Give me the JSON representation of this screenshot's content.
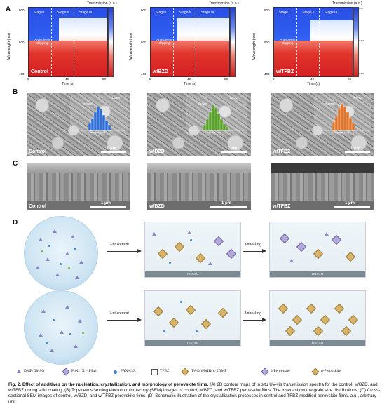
{
  "panels": {
    "A": "A",
    "B": "B",
    "C": "C",
    "D": "D"
  },
  "panelA": {
    "colorbar_title": "Transmission (a.u.)",
    "ylabel": "Wavelength (nm)",
    "xlabel": "Time (s)",
    "yticks": [
      "400",
      "600",
      "800"
    ],
    "xticks": [
      "0",
      "20",
      "40",
      "60",
      "80"
    ],
    "stages": [
      "Stage I",
      "Stage II",
      "Stage III"
    ],
    "annotation": "Antisolvent dripping",
    "conditions": [
      "Control",
      "w/BZD",
      "w/TFBZ"
    ],
    "cbar_ticks": [
      "1.00",
      "0.975",
      "0.950",
      "0.925",
      "0.900",
      "0.875",
      "0.850",
      "0.825",
      "0.800"
    ]
  },
  "panelB": {
    "labels": [
      "Control",
      "w/BZD",
      "w/TFBZ"
    ],
    "scale": "1 μm",
    "inset_labels": [
      "Control",
      "w/BZD",
      "w/TFBZ"
    ],
    "inset_caption": "Average: ",
    "inset_xlabel": "Grain size (nm)",
    "inset_colors": [
      "#2f6fd6",
      "#5aa32a",
      "#e0762a"
    ]
  },
  "panelC": {
    "labels": [
      "Control",
      "w/BZD",
      "w/TFBZ"
    ],
    "scale": "1 μm"
  },
  "panelD": {
    "arrow1": "Antisolvent",
    "arrow2": "Annealing",
    "substrate": "ITO/SAM",
    "legend": [
      "DMF/DMSO",
      "PbX₂ (X = I/Br)",
      "FAX/CsX",
      "TFBZ",
      "(FACs)Pb(IBr)₃·2DMF",
      "δ-Perovskite",
      "α-Perovskite"
    ]
  },
  "caption": {
    "bold": "Fig. 2. Effect of additives on the nucleation, crystallization, and morphology of perovskite films.",
    "text": " (A) 2D contour maps of in situ UV-vis transmission spectra for the control, w/BZD, and w/TFBZ during spin coating. (B) Top-view scanning electron microscopy (SEM) images of control, w/BZD, and w/TFBZ perovskite films. The insets show the grain size distributions. (C) Cross-sectional SEM images of control, w/BZD, and w/TFBZ perovskite films. (D) Schematic illustration of the crystallization processes in control and TFBZ-modified perovskite films. a.u., arbitrary unit."
  }
}
